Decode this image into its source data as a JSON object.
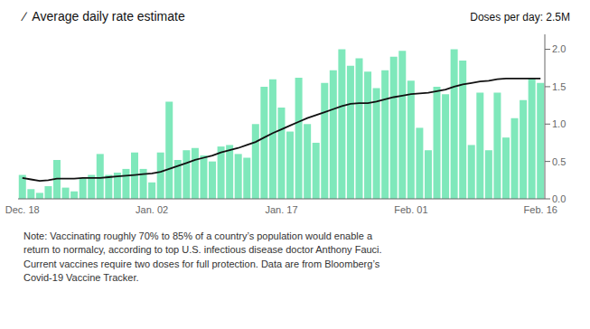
{
  "chart_data": {
    "type": "bar",
    "title": "∕  Average daily rate estimate",
    "subtitle": "Doses per day: 2.5M",
    "note": "Note: Vaccinating roughly 70% to 85% of a country’s population would enable a\nreturn to normalcy, according to top U.S. infectious disease doctor Anthony Fauci.\nCurrent vaccines require two doses for full protection. Data are from Bloomberg’s\nCovid-19 Vaccine Tracker.",
    "categories": [
      "Dec. 18",
      null,
      null,
      null,
      null,
      null,
      null,
      null,
      null,
      null,
      null,
      null,
      null,
      null,
      null,
      "Jan. 02",
      null,
      null,
      null,
      null,
      null,
      null,
      null,
      null,
      null,
      null,
      null,
      null,
      null,
      null,
      "Jan. 17",
      null,
      null,
      null,
      null,
      null,
      null,
      null,
      null,
      null,
      null,
      null,
      null,
      null,
      null,
      "Feb. 01",
      null,
      null,
      null,
      null,
      null,
      null,
      null,
      null,
      null,
      null,
      null,
      null,
      null,
      null,
      "Feb. 16"
    ],
    "series": [
      {
        "type": "bar",
        "color": "#7fe8bb",
        "values": [
          0.32,
          0.13,
          0.08,
          0.17,
          0.52,
          0.15,
          0.1,
          0.28,
          0.32,
          0.6,
          0.32,
          0.35,
          0.4,
          0.62,
          0.4,
          0.22,
          0.62,
          1.3,
          0.52,
          0.65,
          0.68,
          0.58,
          0.5,
          0.7,
          0.72,
          0.6,
          0.55,
          1.0,
          1.5,
          1.6,
          1.22,
          0.9,
          1.62,
          1.0,
          0.75,
          1.55,
          1.72,
          2.0,
          1.78,
          1.88,
          1.7,
          1.48,
          1.72,
          1.9,
          1.98,
          1.58,
          0.95,
          0.65,
          1.5,
          1.4,
          2.0,
          1.85,
          0.72,
          1.42,
          0.65,
          1.42,
          0.82,
          1.08,
          1.32,
          1.62,
          1.55
        ]
      },
      {
        "type": "line",
        "color": "#111111",
        "values": [
          0.28,
          0.26,
          0.24,
          0.25,
          0.27,
          0.27,
          0.27,
          0.28,
          0.28,
          0.28,
          0.29,
          0.3,
          0.31,
          0.32,
          0.33,
          0.34,
          0.36,
          0.4,
          0.44,
          0.48,
          0.52,
          0.55,
          0.58,
          0.62,
          0.65,
          0.68,
          0.72,
          0.76,
          0.82,
          0.88,
          0.93,
          0.98,
          1.03,
          1.08,
          1.12,
          1.16,
          1.2,
          1.24,
          1.27,
          1.28,
          1.28,
          1.3,
          1.33,
          1.36,
          1.38,
          1.4,
          1.41,
          1.42,
          1.44,
          1.46,
          1.5,
          1.53,
          1.55,
          1.57,
          1.58,
          1.6,
          1.61,
          1.61,
          1.61,
          1.61,
          1.61
        ]
      }
    ],
    "ylim": [
      0,
      2.2
    ],
    "yticks": [
      {
        "value": 0,
        "label": "0.0"
      },
      0.5,
      {
        "value": 1,
        "label": "1.0"
      },
      1.5,
      {
        "value": 2,
        "label": "2.0"
      }
    ],
    "grid": false
  }
}
